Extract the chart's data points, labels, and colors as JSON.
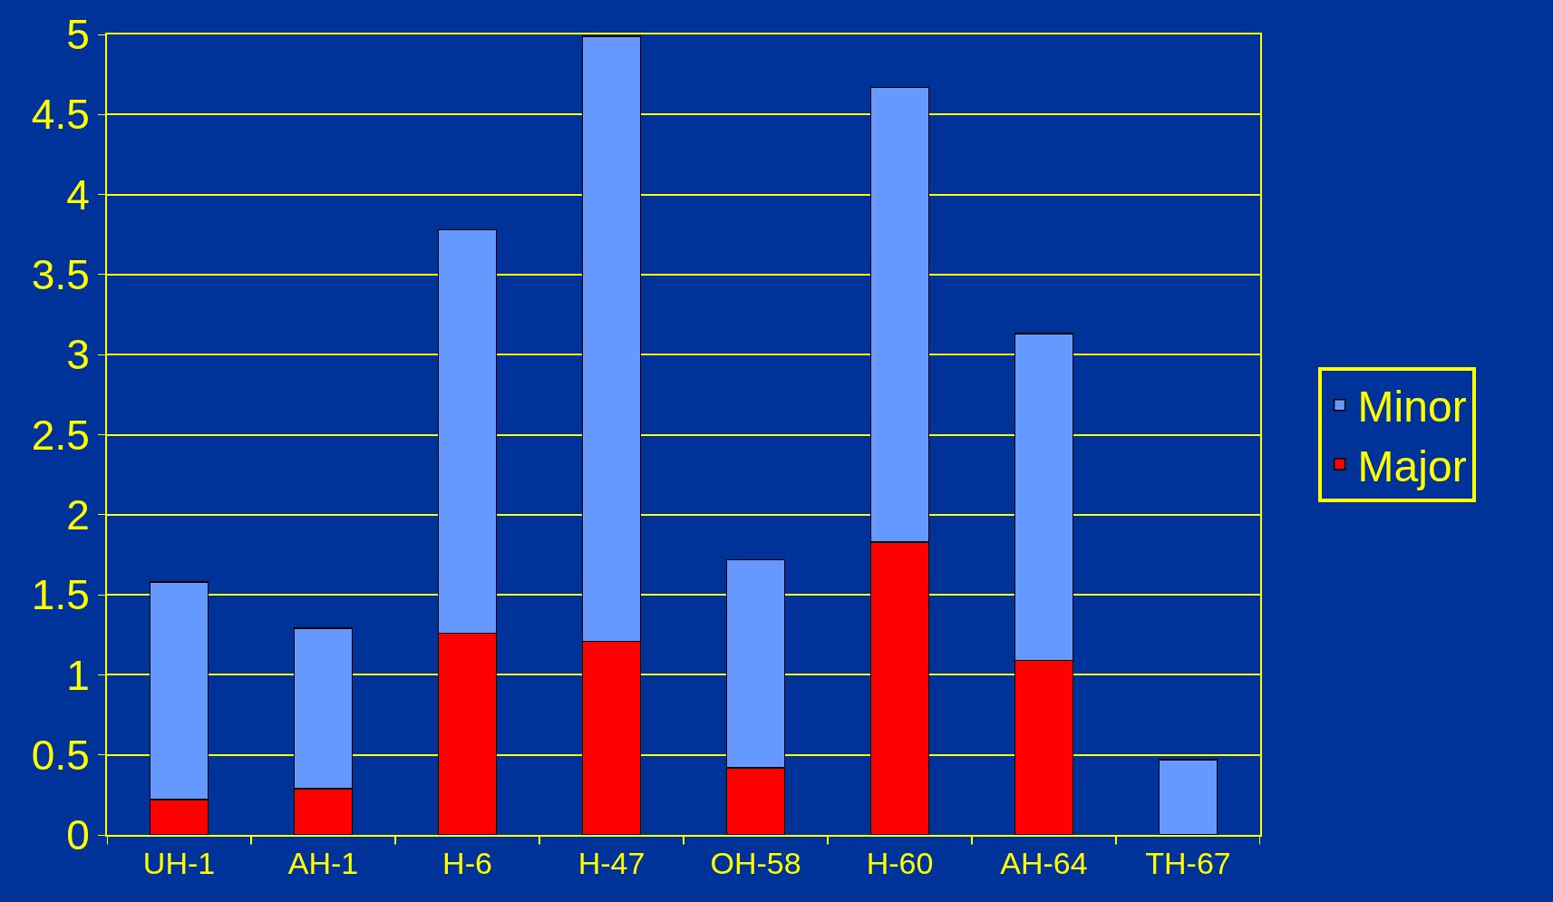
{
  "chart_data": {
    "type": "bar",
    "stacked": true,
    "categories": [
      "UH-1",
      "AH-1",
      "H-6",
      "H-47",
      "OH-58",
      "H-60",
      "AH-64",
      "TH-67"
    ],
    "series": [
      {
        "name": "Major",
        "color": "#ff0000",
        "values": [
          0.22,
          0.29,
          1.26,
          1.21,
          0.42,
          1.83,
          1.09,
          0
        ]
      },
      {
        "name": "Minor",
        "color": "#6699ff",
        "values": [
          1.36,
          1.0,
          2.52,
          3.78,
          1.3,
          2.84,
          2.04,
          0.47
        ]
      }
    ],
    "ylim": [
      0,
      5
    ],
    "yticks": [
      0,
      0.5,
      1,
      1.5,
      2,
      2.5,
      3,
      3.5,
      4,
      4.5,
      5
    ],
    "grid": "y",
    "legend": "right"
  }
}
